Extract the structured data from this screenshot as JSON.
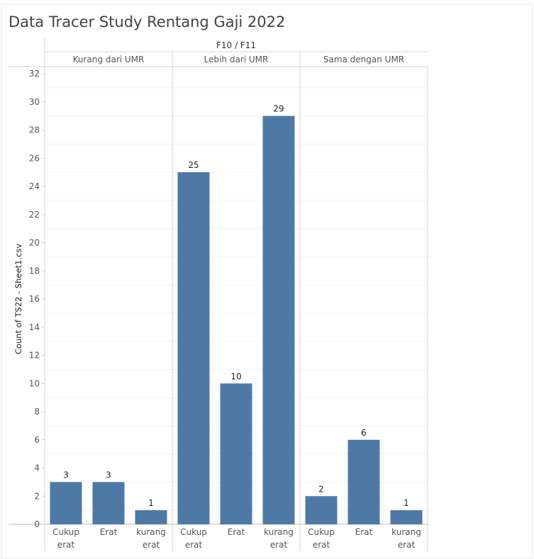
{
  "chart_data": {
    "type": "bar",
    "title": "Data Tracer Study Rentang Gaji 2022",
    "header_label": "F10 / F11",
    "ylabel": "Count of TS22 - Sheet1.csv",
    "ylim": [
      0,
      32
    ],
    "y_ticks": [
      "0",
      "2",
      "4",
      "6",
      "8",
      "10",
      "12",
      "14",
      "16",
      "18",
      "20",
      "22",
      "24",
      "26",
      "28",
      "30",
      "32"
    ],
    "groups": [
      {
        "label": "Kurang dari UMR",
        "bars": [
          {
            "category": [
              "Cukup",
              "erat"
            ],
            "value": 3,
            "value_label": "3"
          },
          {
            "category": [
              "Erat"
            ],
            "value": 3,
            "value_label": "3"
          },
          {
            "category": [
              "kurang",
              "erat"
            ],
            "value": 1,
            "value_label": "1"
          }
        ]
      },
      {
        "label": "Lebih dari UMR",
        "bars": [
          {
            "category": [
              "Cukup",
              "erat"
            ],
            "value": 25,
            "value_label": "25"
          },
          {
            "category": [
              "Erat"
            ],
            "value": 10,
            "value_label": "10"
          },
          {
            "category": [
              "kurang",
              "erat"
            ],
            "value": 29,
            "value_label": "29"
          }
        ]
      },
      {
        "label": "Sama dengan UMR",
        "bars": [
          {
            "category": [
              "Cukup",
              "erat"
            ],
            "value": 2,
            "value_label": "2"
          },
          {
            "category": [
              "Erat"
            ],
            "value": 6,
            "value_label": "6"
          },
          {
            "category": [
              "kurang",
              "erat"
            ],
            "value": 1,
            "value_label": "1"
          }
        ]
      }
    ],
    "bar_color": "#4e79a7",
    "grid": true,
    "legend": "none"
  }
}
